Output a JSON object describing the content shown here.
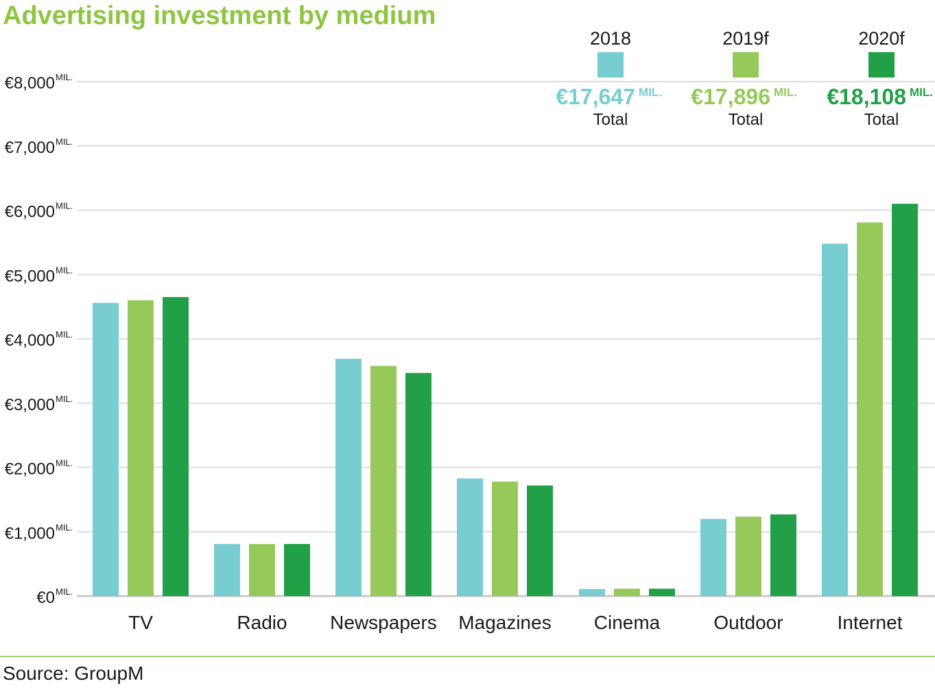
{
  "title": "Advertising investment by medium",
  "source": "Source: GroupM",
  "chart_data": {
    "type": "bar",
    "title": "Advertising investment by medium",
    "categories": [
      "TV",
      "Radio",
      "Newspapers",
      "Magazines",
      "Cinema",
      "Outdoor",
      "Internet"
    ],
    "series": [
      {
        "name": "2018",
        "color": "#78cdd0",
        "values": [
          4560,
          810,
          3690,
          1830,
          110,
          1200,
          5480
        ]
      },
      {
        "name": "2019f",
        "color": "#96c95a",
        "values": [
          4600,
          810,
          3580,
          1780,
          115,
          1235,
          5810
        ]
      },
      {
        "name": "2020f",
        "color": "#21a047",
        "values": [
          4650,
          810,
          3470,
          1720,
          115,
          1270,
          6100
        ]
      }
    ],
    "totals": [
      {
        "value": "€17,647",
        "unit": "MIL.",
        "label": "Total",
        "color": "#78cdd0"
      },
      {
        "value": "€17,896",
        "unit": "MIL.",
        "label": "Total",
        "color": "#96c95a"
      },
      {
        "value": "€18,108",
        "unit": "MIL.",
        "label": "Total",
        "color": "#21a047"
      }
    ],
    "yticks": [
      {
        "value": 0,
        "label": "€0",
        "unit": "MIL."
      },
      {
        "value": 1000,
        "label": "€1,000",
        "unit": "MIL."
      },
      {
        "value": 2000,
        "label": "€2,000",
        "unit": "MIL."
      },
      {
        "value": 3000,
        "label": "€3,000",
        "unit": "MIL."
      },
      {
        "value": 4000,
        "label": "€4,000",
        "unit": "MIL."
      },
      {
        "value": 5000,
        "label": "€5,000",
        "unit": "MIL."
      },
      {
        "value": 6000,
        "label": "€6,000",
        "unit": "MIL."
      },
      {
        "value": 7000,
        "label": "€7,000",
        "unit": "MIL."
      },
      {
        "value": 8000,
        "label": "€8,000",
        "unit": "MIL."
      }
    ],
    "ylim": [
      0,
      8000
    ],
    "grid": true,
    "legend_position": "top-right",
    "xlabel": "",
    "ylabel": ""
  }
}
